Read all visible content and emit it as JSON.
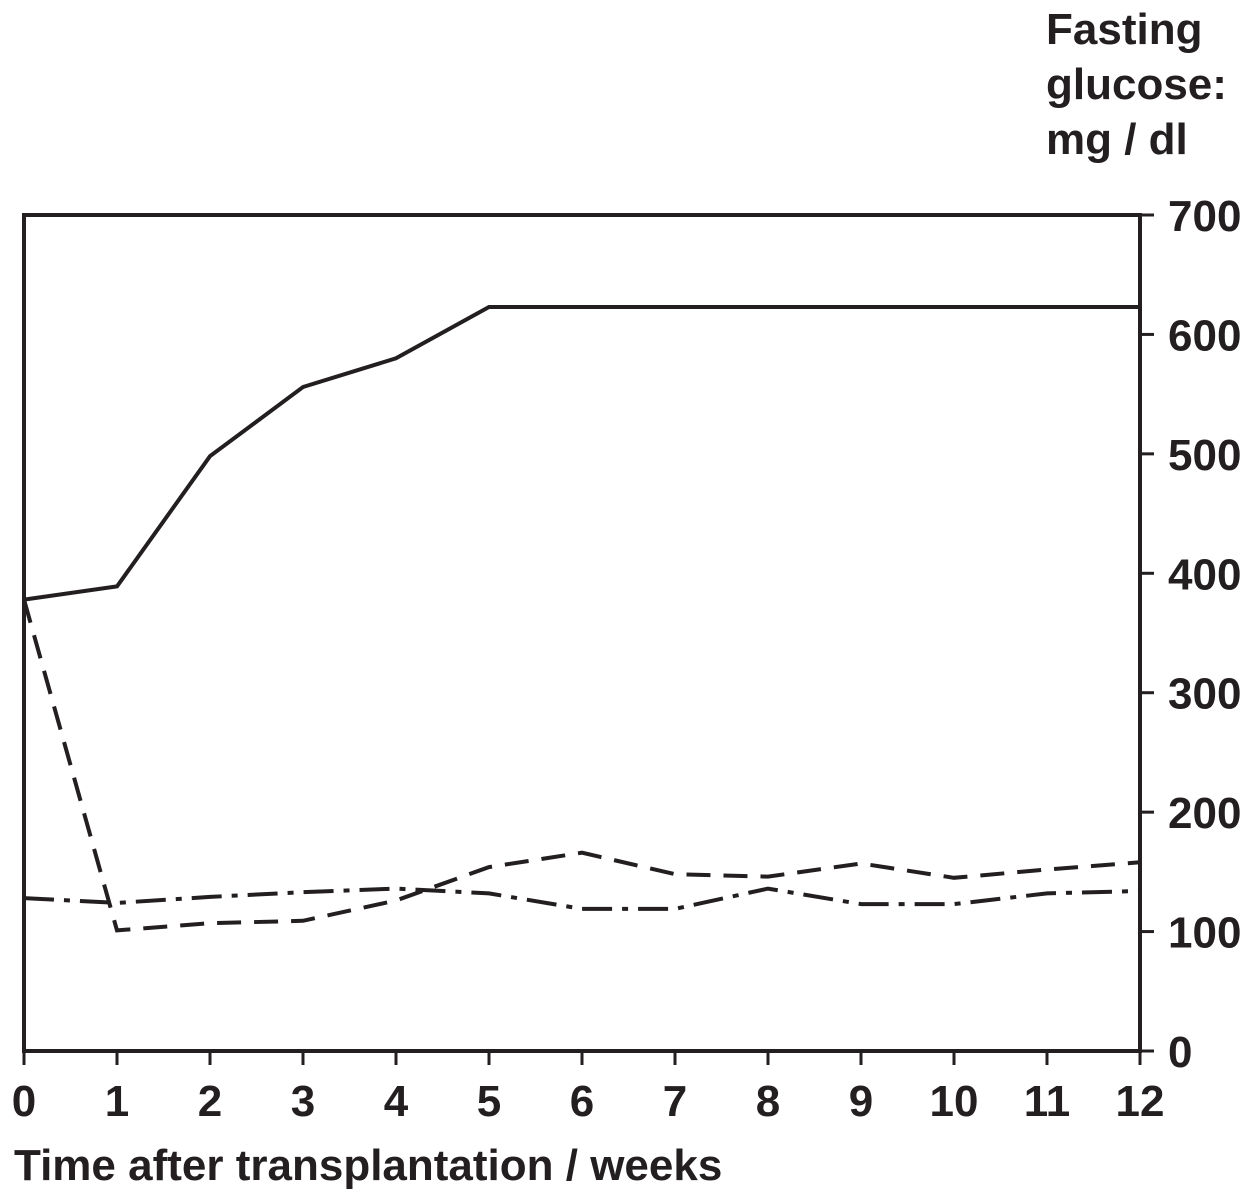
{
  "chart_data": {
    "type": "line",
    "xlabel": "Time after transplantation / weeks",
    "ylabel_lines": [
      "Fasting",
      "glucose:",
      "mg / dl"
    ],
    "xlim": [
      0,
      12
    ],
    "ylim": [
      0,
      700
    ],
    "x_ticks": [
      0,
      1,
      2,
      3,
      4,
      5,
      6,
      7,
      8,
      9,
      10,
      11,
      12
    ],
    "y_ticks": [
      0,
      100,
      200,
      300,
      400,
      500,
      600,
      700
    ],
    "y_axis_side": "right",
    "grid": false,
    "legend": "none",
    "series": [
      {
        "style": "solid",
        "x": [
          0,
          1,
          2,
          3,
          4,
          5,
          6,
          7,
          8,
          9,
          10,
          11,
          12
        ],
        "values": [
          378,
          389,
          498,
          556,
          580,
          623,
          623,
          623,
          623,
          623,
          623,
          623,
          623
        ]
      },
      {
        "style": "dashed",
        "x": [
          0,
          1,
          2,
          3,
          4,
          5,
          6,
          7,
          8,
          9,
          10,
          11,
          12
        ],
        "values": [
          378,
          101,
          107,
          109,
          126,
          154,
          166,
          148,
          146,
          157,
          145,
          152,
          158
        ]
      },
      {
        "style": "dash-dot",
        "x": [
          0,
          1,
          2,
          3,
          4,
          5,
          6,
          7,
          8,
          9,
          10,
          11,
          12
        ],
        "values": [
          128,
          124,
          129,
          133,
          136,
          132,
          119,
          119,
          136,
          123,
          123,
          132,
          134
        ]
      }
    ]
  }
}
